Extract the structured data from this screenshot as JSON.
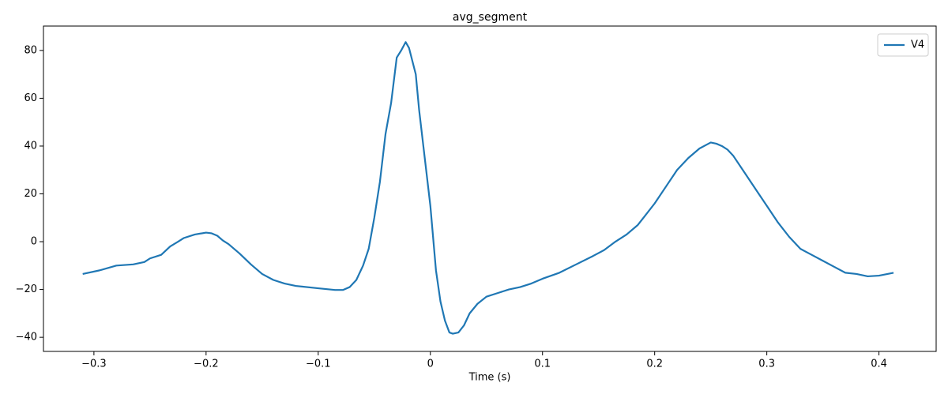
{
  "chart_data": {
    "type": "line",
    "title": "avg_segment",
    "x_label": "Time (s)",
    "x": [
      -0.31,
      -0.295,
      -0.28,
      -0.265,
      -0.255,
      -0.25,
      -0.24,
      -0.232,
      -0.225,
      -0.22,
      -0.21,
      -0.2,
      -0.195,
      -0.19,
      -0.185,
      -0.18,
      -0.17,
      -0.16,
      -0.15,
      -0.14,
      -0.13,
      -0.12,
      -0.1,
      -0.085,
      -0.078,
      -0.072,
      -0.066,
      -0.06,
      -0.055,
      -0.05,
      -0.045,
      -0.04,
      -0.035,
      -0.03,
      -0.026,
      -0.022,
      -0.019,
      -0.013,
      -0.01,
      -0.005,
      0,
      0.005,
      0.009,
      0.013,
      0.017,
      0.02,
      0.025,
      0.03,
      0.035,
      0.042,
      0.05,
      0.06,
      0.07,
      0.08,
      0.09,
      0.1,
      0.115,
      0.13,
      0.145,
      0.155,
      0.165,
      0.175,
      0.185,
      0.19,
      0.2,
      0.21,
      0.22,
      0.23,
      0.24,
      0.25,
      0.255,
      0.26,
      0.265,
      0.27,
      0.28,
      0.29,
      0.3,
      0.31,
      0.32,
      0.33,
      0.34,
      0.35,
      0.36,
      0.37,
      0.38,
      0.39,
      0.4,
      0.413
    ],
    "series": [
      {
        "name": "V4",
        "color": "#1f77b4",
        "values": [
          -13.5,
          -12,
          -10,
          -9.5,
          -8.5,
          -7,
          -5.5,
          -2,
          0,
          1.5,
          3,
          3.8,
          3.5,
          2.5,
          0.5,
          -1,
          -5,
          -9.5,
          -13.5,
          -16,
          -17.5,
          -18.5,
          -19.5,
          -20.2,
          -20.2,
          -19,
          -16,
          -10,
          -3,
          10,
          25,
          45,
          58,
          77,
          80,
          83.5,
          81,
          70,
          55,
          35,
          15,
          -12,
          -25,
          -33,
          -38,
          -38.5,
          -38,
          -35,
          -30,
          -26,
          -23,
          -21.5,
          -20,
          -19,
          -17.5,
          -15.5,
          -13,
          -9.5,
          -6,
          -3.5,
          0,
          3,
          7,
          10,
          16,
          23,
          30,
          35,
          39,
          41.5,
          41,
          40,
          38.5,
          36,
          29,
          22,
          15,
          8,
          2,
          -3,
          -5.5,
          -8,
          -10.5,
          -13,
          -13.5,
          -14.5,
          -14.2,
          -13
        ]
      }
    ],
    "xlim": [
      -0.345,
      0.451
    ],
    "ylim": [
      -45.9,
      90.2
    ],
    "xticks": [
      {
        "value": -0.3,
        "label": "−0.3"
      },
      {
        "value": -0.2,
        "label": "−0.2"
      },
      {
        "value": -0.1,
        "label": "−0.1"
      },
      0,
      {
        "value": 0.1,
        "label": "0.1"
      },
      {
        "value": 0.2,
        "label": "0.2"
      },
      {
        "value": 0.3,
        "label": "0.3"
      },
      {
        "value": 0.4,
        "label": "0.4"
      }
    ],
    "yticks": [
      {
        "value": -40,
        "label": "−40"
      },
      {
        "value": -20,
        "label": "−20"
      },
      0,
      20,
      40,
      60,
      80
    ],
    "legend": "upper right"
  }
}
